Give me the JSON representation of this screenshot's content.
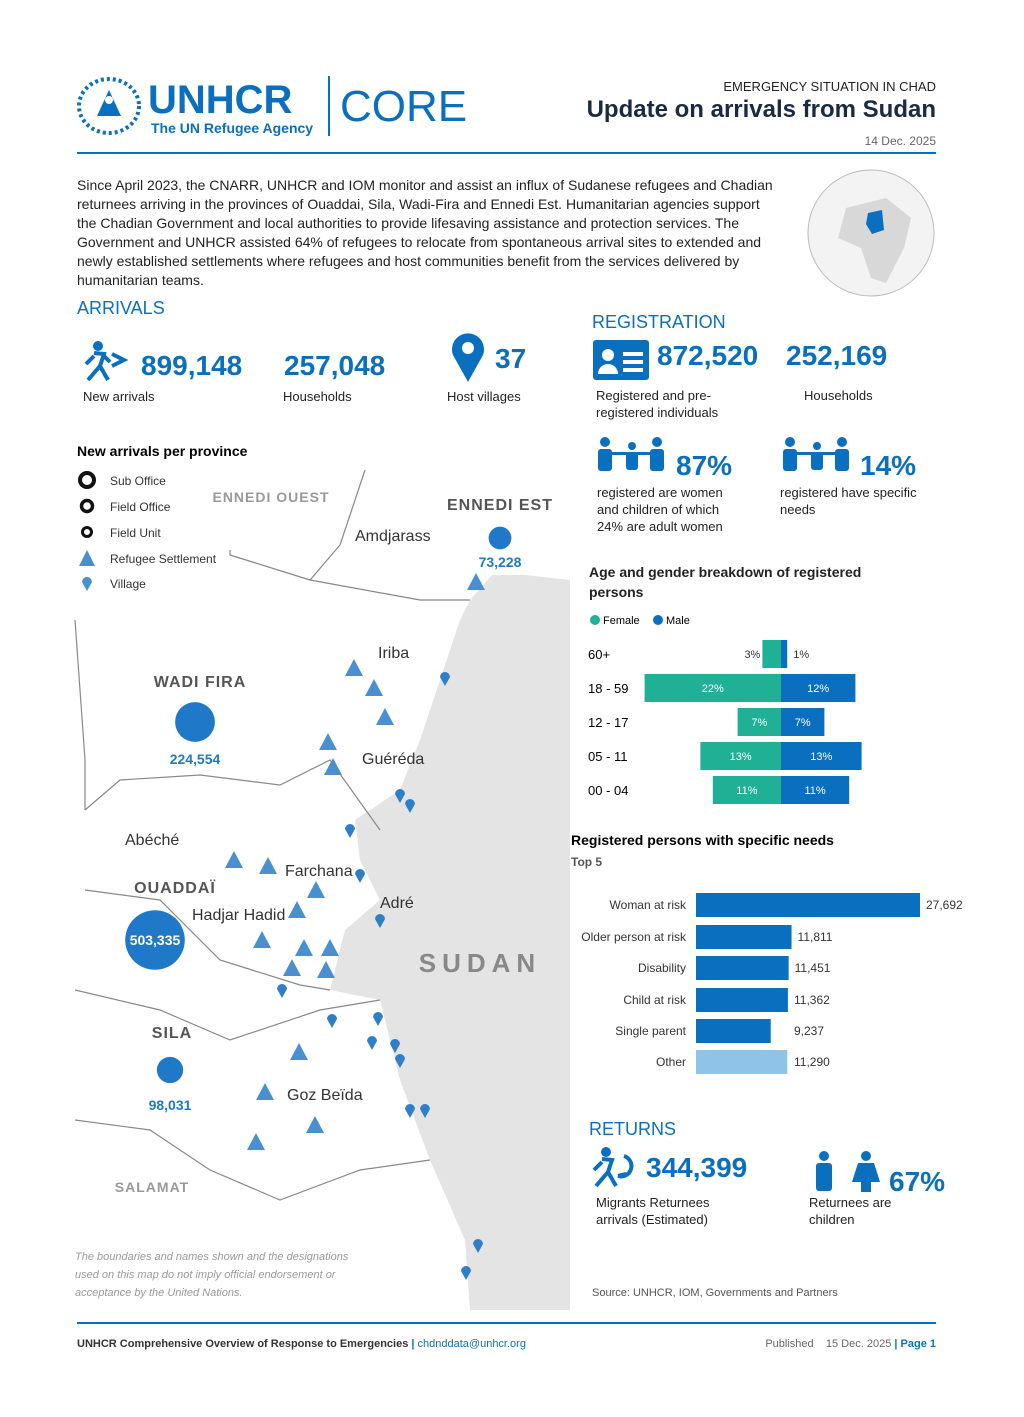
{
  "header": {
    "logo": "UNHCR",
    "logo_sub": "The UN Refugee Agency",
    "core": "CORE",
    "kicker": "EMERGENCY SITUATION IN CHAD",
    "title": "Update on arrivals from Sudan",
    "date": "14 Dec. 2025"
  },
  "intro": "Since April 2023, the CNARR, UNHCR and IOM monitor and assist an influx of Sudanese refugees and Chadian returnees arriving in the provinces of Ouaddai, Sila, Wadi-Fira and Ennedi Est. Humanitarian agencies support the Chadian Government and local authorities to provide lifesaving assistance and protection services. The Government and UNHCR assisted 64% of refugees to relocate from spontaneous arrival sites to extended and newly established settlements where refugees and host communities benefit from the services delivered by humanitarian teams.",
  "arrivals": {
    "heading": "ARRIVALS",
    "stats": [
      {
        "value": "899,148",
        "label": "New arrivals"
      },
      {
        "value": "257,048",
        "label": "Households"
      },
      {
        "value": "37",
        "label": "Host villages"
      }
    ]
  },
  "map": {
    "title": "New arrivals per province",
    "legend": [
      "Sub Office",
      "Field Office",
      "Field Unit",
      "Refugee Settlement",
      "Village"
    ],
    "regions": [
      {
        "name": "ENNEDI EST",
        "value": 73228,
        "label": "73,228"
      },
      {
        "name": "WADI FIRA",
        "value": 224554,
        "label": "224,554"
      },
      {
        "name": "OUADDAÏ",
        "value": 503335,
        "label": "503,335"
      },
      {
        "name": "SILA",
        "value": 98031,
        "label": "98,031"
      }
    ],
    "other_regions": [
      "ENNEDI OUEST",
      "SALAMAT"
    ],
    "places": [
      "Amdjarass",
      "Iriba",
      "Guéréda",
      "Abéché",
      "Farchana",
      "Hadjar Hadid",
      "Adré",
      "Goz Beïda"
    ],
    "country": "SUDAN",
    "disclaimer": "The boundaries and names shown and the designations used on this map do not imply official endorsement or acceptance by the United Nations."
  },
  "registration": {
    "heading": "REGISTRATION",
    "stats": [
      {
        "value": "872,520",
        "label": "Registered and pre-registered individuals"
      },
      {
        "value": "252,169",
        "label": "Households"
      }
    ],
    "women_children": {
      "value": "87%",
      "label": "registered are women and children of which 24% are adult women"
    },
    "specific_needs": {
      "value": "14%",
      "label": "registered have specific needs"
    }
  },
  "age_gender": {
    "title": "Age and gender breakdown of registered persons",
    "groups": [
      "60+",
      "18 - 59",
      "12 - 17",
      "05 - 11",
      "00 - 04"
    ],
    "series": [
      {
        "name": "Female",
        "color": "#1fb095",
        "values": [
          3,
          22,
          7,
          13,
          11
        ],
        "value_labels": [
          "3%",
          "22%",
          "7%",
          "13%",
          "11%"
        ]
      },
      {
        "name": "Male",
        "color": "#0a6fbf",
        "values": [
          1,
          12,
          7,
          13,
          11
        ],
        "value_labels": [
          "1%",
          "12%",
          "7%",
          "13%",
          "11%"
        ]
      }
    ]
  },
  "needs": {
    "title": "Registered persons with specific needs",
    "subtitle": "Top 5",
    "categories": [
      "Woman at risk",
      "Older person at risk",
      "Disability",
      "Child at risk",
      "Single parent",
      "Other"
    ],
    "values": [
      27692,
      11811,
      11451,
      11362,
      9237,
      11290
    ],
    "value_labels": [
      "27,692",
      "11,811",
      "11,451",
      "11,362",
      "9,237",
      "11,290"
    ],
    "colors": [
      "#0a6fbf",
      "#0a6fbf",
      "#0a6fbf",
      "#0a6fbf",
      "#0a6fbf",
      "#8fc3e8"
    ]
  },
  "returns": {
    "heading": "RETURNS",
    "stats": [
      {
        "value": "344,399",
        "label": "Migrants Returnees arrivals (Estimated)"
      },
      {
        "value": "67%",
        "label": "Returnees are children"
      }
    ]
  },
  "source": "Source: UNHCR, IOM, Governments and Partners",
  "footer": {
    "left": "UNHCR Comprehensive Overview of Response to Emergencies",
    "email": "chdnddata@unhcr.org",
    "published": "Published",
    "date": "15 Dec. 2025",
    "page": "Page 1"
  }
}
